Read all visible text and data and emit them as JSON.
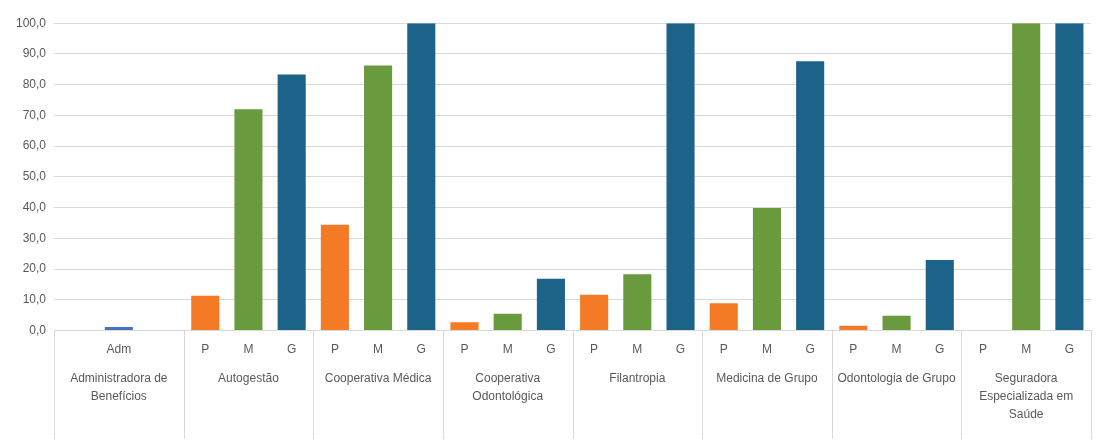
{
  "chart_data": {
    "type": "bar",
    "categories": [
      null,
      "Adm",
      null,
      "P",
      "M",
      "G",
      "P",
      "M",
      "G",
      "P",
      "M",
      "G",
      "P",
      "M",
      "G",
      "P",
      "M",
      "G",
      "P",
      "M",
      "G",
      "P",
      "M",
      "G"
    ],
    "values": [
      null,
      1.2,
      null,
      11.3,
      72.0,
      83.3,
      34.4,
      86.2,
      100,
      2.7,
      5.5,
      16.9,
      11.7,
      18.3,
      100,
      8.9,
      39.9,
      87.6,
      1.6,
      4.8,
      23.0,
      null,
      100,
      100
    ],
    "colors": [
      "#4472c4",
      "#4472c4",
      "#4472c4",
      "#f47a26",
      "#6a9a3e",
      "#1b6389",
      "#f47a26",
      "#6a9a3e",
      "#1b6389",
      "#f47a26",
      "#6a9a3e",
      "#1b6389",
      "#f47a26",
      "#6a9a3e",
      "#1b6389",
      "#f47a26",
      "#6a9a3e",
      "#1b6389",
      "#f47a26",
      "#6a9a3e",
      "#1b6389",
      "#f47a26",
      "#6a9a3e",
      "#1b6389"
    ],
    "ylim": [
      0,
      100
    ],
    "yticks": [
      {
        "value": 0,
        "label": "0,0"
      },
      {
        "value": 10,
        "label": "10,0"
      },
      {
        "value": 20,
        "label": "20,0"
      },
      {
        "value": 30,
        "label": "30,0"
      },
      {
        "value": 40,
        "label": "40,0"
      },
      {
        "value": 50,
        "label": "50,0"
      },
      {
        "value": 60,
        "label": "60,0"
      },
      {
        "value": 70,
        "label": "70,0"
      },
      {
        "value": 80,
        "label": "80,0"
      },
      {
        "value": 90,
        "label": "90,0"
      },
      {
        "value": 100,
        "label": "100,0"
      }
    ],
    "grid": "y",
    "legend": false,
    "annotations": [
      "Administradora de Benefícios",
      "Autogestão",
      "Cooperativa Médica",
      "Cooperativa Odontológica",
      "Filantropia",
      "Medicina de Grupo",
      "Odontologia de Grupo",
      "Seguradora Especializada em Saúde"
    ]
  }
}
